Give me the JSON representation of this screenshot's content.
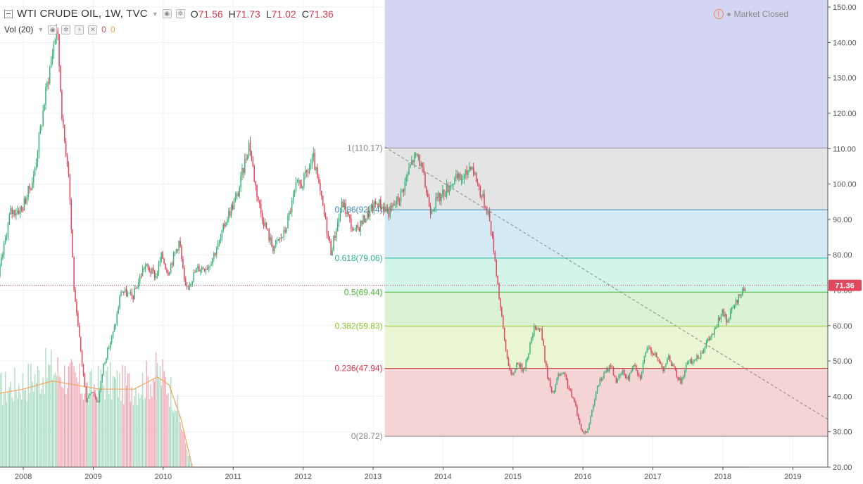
{
  "header": {
    "symbol": "WTI CRUDE OIL, 1W, TVC",
    "open_label": "O",
    "open": "71.56",
    "high_label": "H",
    "high": "71.73",
    "low_label": "L",
    "low": "71.02",
    "close_label": "C",
    "close": "71.36",
    "volume_label": "Vol (20)",
    "volume_value": "0",
    "volume_ma_value": "0",
    "status": "Market Closed"
  },
  "colors": {
    "up": "#3db57a",
    "down": "#e0485e",
    "volume_ma": "#f4a460",
    "fib_zones": [
      "#d4d4f3",
      "#e4e4e4",
      "#d3eaf5",
      "#d2f4e9",
      "#dbf3d2",
      "#eaf5d4",
      "#f4d4d4"
    ],
    "fib_lines": [
      "#888888",
      "#3b8bc1",
      "#2bb596",
      "#49b836",
      "#8fc42b",
      "#c0392b",
      "#888888"
    ],
    "fib_labels": [
      "#8a8a8a",
      "#3b8bc1",
      "#2bb596",
      "#49b836",
      "#8fc42b",
      "#d9354b",
      "#8a8a8a"
    ],
    "last_price_tag": "#e0485e"
  },
  "chart_data": {
    "type": "candlestick",
    "x_axis": {
      "tick_labels": [
        "2008",
        "2009",
        "2010",
        "2011",
        "2012",
        "2013",
        "2014",
        "2015",
        "2016",
        "2017",
        "2018",
        "2019"
      ],
      "range": [
        "2007-09",
        "2019-07"
      ]
    },
    "y_axis": {
      "tick_labels": [
        "20.00",
        "30.00",
        "40.00",
        "50.00",
        "60.00",
        "70.00",
        "80.00",
        "90.00",
        "100.00",
        "110.00",
        "120.00",
        "130.00",
        "140.00",
        "150.00"
      ],
      "range": [
        20,
        152
      ],
      "position": "right"
    },
    "last_price": "71.36",
    "price_points": [
      [
        "2007-09",
        74
      ],
      [
        "2007-11",
        92
      ],
      [
        "2008-01",
        93
      ],
      [
        "2008-03",
        102
      ],
      [
        "2008-05",
        125
      ],
      [
        "2008-07",
        145
      ],
      [
        "2008-08",
        116
      ],
      [
        "2008-09",
        104
      ],
      [
        "2008-10",
        68
      ],
      [
        "2008-11",
        54
      ],
      [
        "2008-12",
        39
      ],
      [
        "2009-01",
        42
      ],
      [
        "2009-02",
        38
      ],
      [
        "2009-03",
        49
      ],
      [
        "2009-05",
        60
      ],
      [
        "2009-06",
        70
      ],
      [
        "2009-08",
        68
      ],
      [
        "2009-10",
        77
      ],
      [
        "2009-12",
        74
      ],
      [
        "2010-01",
        80
      ],
      [
        "2010-02",
        75
      ],
      [
        "2010-04",
        84
      ],
      [
        "2010-05",
        70
      ],
      [
        "2010-07",
        76
      ],
      [
        "2010-09",
        77
      ],
      [
        "2010-11",
        84
      ],
      [
        "2010-12",
        90
      ],
      [
        "2011-02",
        97
      ],
      [
        "2011-04",
        112
      ],
      [
        "2011-05",
        100
      ],
      [
        "2011-06",
        92
      ],
      [
        "2011-08",
        82
      ],
      [
        "2011-10",
        86
      ],
      [
        "2011-12",
        99
      ],
      [
        "2012-01",
        100
      ],
      [
        "2012-03",
        107
      ],
      [
        "2012-05",
        90
      ],
      [
        "2012-06",
        81
      ],
      [
        "2012-08",
        95
      ],
      [
        "2012-10",
        86
      ],
      [
        "2012-12",
        91
      ],
      [
        "2013-02",
        95
      ],
      [
        "2013-04",
        92
      ],
      [
        "2013-06",
        97
      ],
      [
        "2013-08",
        107
      ],
      [
        "2013-09",
        108
      ],
      [
        "2013-10",
        101
      ],
      [
        "2013-11",
        93
      ],
      [
        "2014-01",
        97
      ],
      [
        "2014-03",
        101
      ],
      [
        "2014-05",
        102
      ],
      [
        "2014-06",
        106
      ],
      [
        "2014-08",
        96
      ],
      [
        "2014-09",
        92
      ],
      [
        "2014-10",
        81
      ],
      [
        "2014-11",
        66
      ],
      [
        "2014-12",
        53
      ],
      [
        "2015-01",
        45
      ],
      [
        "2015-02",
        50
      ],
      [
        "2015-03",
        47
      ],
      [
        "2015-05",
        60
      ],
      [
        "2015-06",
        59
      ],
      [
        "2015-07",
        47
      ],
      [
        "2015-08",
        40
      ],
      [
        "2015-09",
        46
      ],
      [
        "2015-10",
        46
      ],
      [
        "2015-12",
        37
      ],
      [
        "2016-01",
        30
      ],
      [
        "2016-02",
        30
      ],
      [
        "2016-03",
        38
      ],
      [
        "2016-04",
        44
      ],
      [
        "2016-06",
        49
      ],
      [
        "2016-07",
        44
      ],
      [
        "2016-08",
        47
      ],
      [
        "2016-09",
        45
      ],
      [
        "2016-10",
        50
      ],
      [
        "2016-11",
        45
      ],
      [
        "2016-12",
        53
      ],
      [
        "2017-01",
        53
      ],
      [
        "2017-03",
        48
      ],
      [
        "2017-04",
        51
      ],
      [
        "2017-05",
        47
      ],
      [
        "2017-06",
        44
      ],
      [
        "2017-07",
        49
      ],
      [
        "2017-09",
        51
      ],
      [
        "2017-10",
        54
      ],
      [
        "2017-12",
        59
      ],
      [
        "2018-01",
        64
      ],
      [
        "2018-02",
        61
      ],
      [
        "2018-03",
        65
      ],
      [
        "2018-04",
        68
      ],
      [
        "2018-05",
        71.36
      ]
    ],
    "volume_points": [
      [
        "2007-09",
        19
      ],
      [
        "2007-12",
        20
      ],
      [
        "2008-03",
        22
      ],
      [
        "2008-06",
        24
      ],
      [
        "2008-09",
        22
      ],
      [
        "2008-12",
        19
      ],
      [
        "2009-03",
        21
      ],
      [
        "2009-06",
        20
      ],
      [
        "2009-09",
        20
      ],
      [
        "2009-12",
        23
      ],
      [
        "2010-01",
        22
      ],
      [
        "2010-03",
        17
      ],
      [
        "2010-05",
        5
      ],
      [
        "2010-06",
        0
      ]
    ],
    "volume_ma_points": [
      [
        "2007-09",
        18
      ],
      [
        "2008-01",
        19
      ],
      [
        "2008-06",
        21
      ],
      [
        "2008-10",
        20
      ],
      [
        "2009-02",
        19
      ],
      [
        "2009-08",
        19
      ],
      [
        "2009-12",
        22
      ],
      [
        "2010-02",
        20
      ],
      [
        "2010-04",
        12
      ],
      [
        "2010-06",
        0
      ],
      [
        "2018-05",
        0
      ]
    ],
    "volume_range": [
      0,
      30
    ],
    "fibonacci": {
      "start_x": "2013-03",
      "levels": [
        {
          "ratio": "1.618",
          "value": 152.0,
          "label": ""
        },
        {
          "ratio": "1",
          "value": 110.17,
          "label": "1(110.17)"
        },
        {
          "ratio": "0.786",
          "value": 92.74,
          "label": "0.786(92.74)"
        },
        {
          "ratio": "0.618",
          "value": 79.06,
          "label": "0.618(79.06)"
        },
        {
          "ratio": "0.5",
          "value": 69.44,
          "label": "0.5(69.44)"
        },
        {
          "ratio": "0.382",
          "value": 59.83,
          "label": "0.382(59.83)"
        },
        {
          "ratio": "0.236",
          "value": 47.94,
          "label": "0.236(47.94)"
        },
        {
          "ratio": "0",
          "value": 28.72,
          "label": "0(28.72)"
        }
      ]
    },
    "trendline": {
      "from": [
        "2013-03",
        110.5
      ],
      "to": [
        "2019-07",
        33.5
      ],
      "style": "dashed"
    },
    "grid": true,
    "legend": "none"
  }
}
